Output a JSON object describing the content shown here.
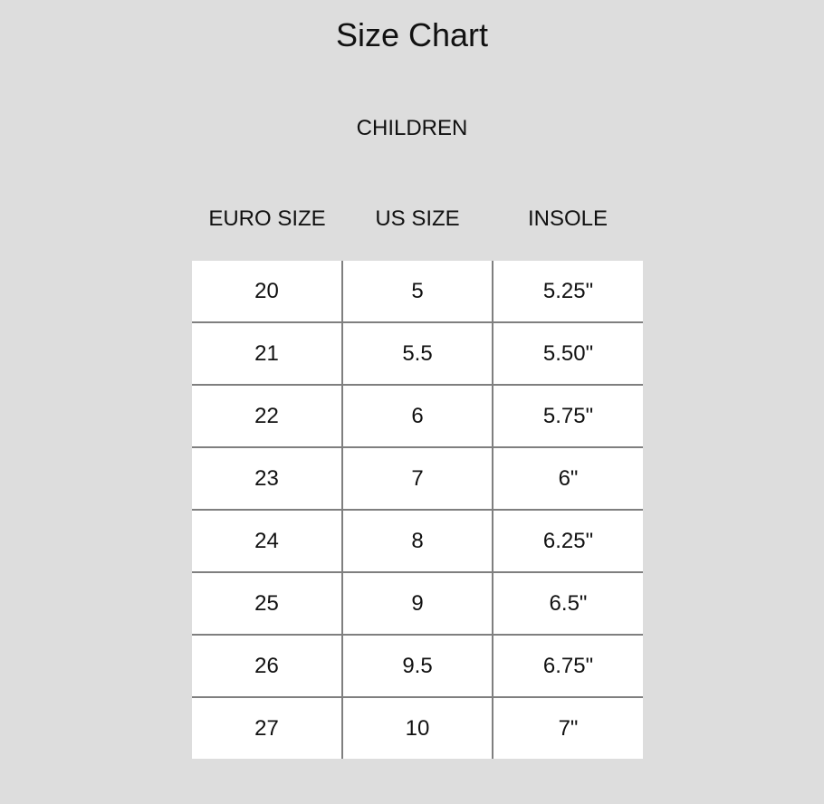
{
  "title": "Size Chart",
  "subtitle": "CHILDREN",
  "columns": [
    "EURO SIZE",
    "US SIZE",
    "INSOLE"
  ],
  "rows": [
    [
      "20",
      "5",
      "5.25\""
    ],
    [
      "21",
      "5.5",
      "5.50\""
    ],
    [
      "22",
      "6",
      "5.75\""
    ],
    [
      "23",
      "7",
      "6\""
    ],
    [
      "24",
      "8",
      "6.25\""
    ],
    [
      "25",
      "9",
      "6.5\""
    ],
    [
      "26",
      "9.5",
      "6.75\""
    ],
    [
      "27",
      "10",
      "7\""
    ]
  ]
}
